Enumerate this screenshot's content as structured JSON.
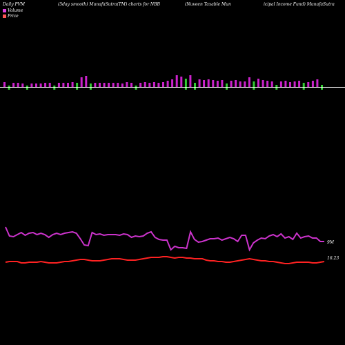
{
  "header": {
    "left": "Daily PVM",
    "middle": "(5day smooth) MunafaSutra(TM) charts for NBB",
    "right_a": "(Nuveen  Taxable  Mun",
    "right_b": "icipal Income  Fund) MunafaSutra"
  },
  "legend": [
    {
      "label": "Volume",
      "color": "#e040e0"
    },
    {
      "label": "Price",
      "color": "#ff5555"
    }
  ],
  "colors": {
    "up_bar": "#cc22cc",
    "down_bar": "#33cc33",
    "volume_line": "#cc33cc",
    "price_line": "#ff2222",
    "axis": "#ffffff"
  },
  "chart_data": {
    "type": "bar+line",
    "bars": [
      {
        "h": 7,
        "dir": "up"
      },
      {
        "h": 6,
        "dir": "down"
      },
      {
        "h": 6,
        "dir": "up"
      },
      {
        "h": 6,
        "dir": "up"
      },
      {
        "h": 5,
        "dir": "up"
      },
      {
        "h": 5,
        "dir": "down"
      },
      {
        "h": 5,
        "dir": "up"
      },
      {
        "h": 5,
        "dir": "up"
      },
      {
        "h": 5,
        "dir": "up"
      },
      {
        "h": 6,
        "dir": "up"
      },
      {
        "h": 6,
        "dir": "up"
      },
      {
        "h": 6,
        "dir": "down"
      },
      {
        "h": 6,
        "dir": "up"
      },
      {
        "h": 6,
        "dir": "up"
      },
      {
        "h": 6,
        "dir": "up"
      },
      {
        "h": 7,
        "dir": "up"
      },
      {
        "h": 10,
        "dir": "down"
      },
      {
        "h": 14,
        "dir": "up"
      },
      {
        "h": 16,
        "dir": "up"
      },
      {
        "h": 9,
        "dir": "down"
      },
      {
        "h": 6,
        "dir": "up"
      },
      {
        "h": 6,
        "dir": "up"
      },
      {
        "h": 6,
        "dir": "up"
      },
      {
        "h": 6,
        "dir": "up"
      },
      {
        "h": 6,
        "dir": "up"
      },
      {
        "h": 6,
        "dir": "up"
      },
      {
        "h": 5,
        "dir": "up"
      },
      {
        "h": 7,
        "dir": "up"
      },
      {
        "h": 6,
        "dir": "up"
      },
      {
        "h": 5,
        "dir": "down"
      },
      {
        "h": 6,
        "dir": "up"
      },
      {
        "h": 7,
        "dir": "up"
      },
      {
        "h": 6,
        "dir": "up"
      },
      {
        "h": 7,
        "dir": "up"
      },
      {
        "h": 6,
        "dir": "up"
      },
      {
        "h": 7,
        "dir": "up"
      },
      {
        "h": 9,
        "dir": "up"
      },
      {
        "h": 11,
        "dir": "up"
      },
      {
        "h": 17,
        "dir": "up"
      },
      {
        "h": 15,
        "dir": "up"
      },
      {
        "h": 16,
        "dir": "down"
      },
      {
        "h": 17,
        "dir": "up"
      },
      {
        "h": 10,
        "dir": "down"
      },
      {
        "h": 11,
        "dir": "up"
      },
      {
        "h": 10,
        "dir": "up"
      },
      {
        "h": 11,
        "dir": "up"
      },
      {
        "h": 10,
        "dir": "up"
      },
      {
        "h": 9,
        "dir": "up"
      },
      {
        "h": 10,
        "dir": "up"
      },
      {
        "h": 9,
        "dir": "down"
      },
      {
        "h": 9,
        "dir": "up"
      },
      {
        "h": 10,
        "dir": "up"
      },
      {
        "h": 8,
        "dir": "up"
      },
      {
        "h": 8,
        "dir": "up"
      },
      {
        "h": 14,
        "dir": "up"
      },
      {
        "h": 12,
        "dir": "down"
      },
      {
        "h": 12,
        "dir": "up"
      },
      {
        "h": 10,
        "dir": "up"
      },
      {
        "h": 9,
        "dir": "up"
      },
      {
        "h": 8,
        "dir": "up"
      },
      {
        "h": 7,
        "dir": "down"
      },
      {
        "h": 8,
        "dir": "up"
      },
      {
        "h": 9,
        "dir": "up"
      },
      {
        "h": 7,
        "dir": "up"
      },
      {
        "h": 8,
        "dir": "up"
      },
      {
        "h": 9,
        "dir": "up"
      },
      {
        "h": 10,
        "dir": "down"
      },
      {
        "h": 7,
        "dir": "up"
      },
      {
        "h": 9,
        "dir": "up"
      },
      {
        "h": 11,
        "dir": "up"
      },
      {
        "h": 7,
        "dir": "down"
      }
    ],
    "volume_line": [
      71,
      58,
      57,
      60,
      63,
      59,
      62,
      63,
      60,
      62,
      60,
      56,
      60,
      62,
      60,
      62,
      63,
      64,
      62,
      54,
      45,
      44,
      63,
      60,
      61,
      59,
      60,
      60,
      60,
      59,
      61,
      60,
      56,
      58,
      57,
      58,
      62,
      64,
      56,
      53,
      52,
      52,
      38,
      43,
      41,
      41,
      40,
      64,
      53,
      49,
      50,
      52,
      54,
      54,
      55,
      52,
      54,
      56,
      54,
      50,
      59,
      59,
      38,
      48,
      52,
      55,
      54,
      58,
      60,
      57,
      61,
      55,
      57,
      53,
      62,
      55,
      57,
      58,
      55,
      55,
      50,
      50
    ],
    "price_line": [
      2,
      3,
      3,
      3,
      1,
      1,
      2,
      2,
      2,
      3,
      2,
      1,
      1,
      1,
      2,
      3,
      3,
      4,
      5,
      6,
      6,
      5,
      4,
      4,
      4,
      5,
      6,
      7,
      7,
      7,
      6,
      5,
      5,
      5,
      6,
      7,
      8,
      9,
      9,
      9,
      10,
      10,
      9,
      8,
      9,
      9,
      8,
      8,
      7,
      7,
      7,
      5,
      4,
      4,
      3,
      3,
      2,
      2,
      3,
      4,
      5,
      6,
      7,
      6,
      5,
      4,
      4,
      3,
      3,
      2,
      1,
      0,
      0,
      1,
      2,
      2,
      2,
      2,
      1,
      1,
      2,
      3
    ],
    "volume_label": "9M",
    "price_label": "16.23"
  }
}
